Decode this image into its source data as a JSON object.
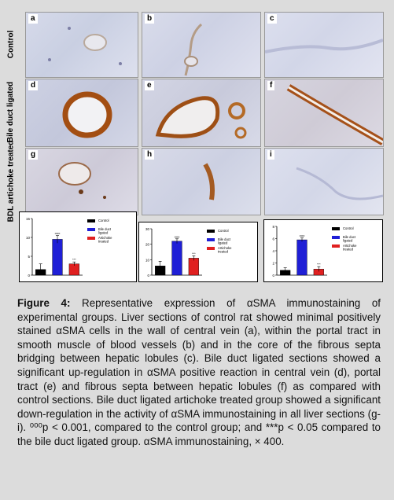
{
  "rows": [
    "Control",
    "Bile duct ligated",
    "BDL artichoke treated"
  ],
  "panels": [
    "a",
    "b",
    "c",
    "d",
    "e",
    "f",
    "g",
    "h",
    "i"
  ],
  "chart_data": [
    {
      "type": "bar",
      "categories": [
        "Control",
        "Bile duct ligated",
        "Artichoke treated"
      ],
      "values": [
        1.5,
        9.5,
        3
      ],
      "errors": [
        1.5,
        1.0,
        0.5
      ],
      "ylim": [
        0,
        15
      ],
      "yticks": [
        "0",
        "5",
        "10",
        "15"
      ],
      "colors": [
        "#000000",
        "#1f1fd6",
        "#e02020"
      ],
      "sig": [
        "",
        "ooo",
        "***"
      ],
      "legend": [
        "Control",
        "Bile duct ligated",
        "Artichoke treated"
      ]
    },
    {
      "type": "bar",
      "categories": [
        "Control",
        "Bile duct ligated",
        "Artichoke treated"
      ],
      "values": [
        6,
        22,
        11
      ],
      "errors": [
        3,
        1.5,
        1.5
      ],
      "ylim": [
        0,
        30
      ],
      "yticks": [
        "0",
        "10",
        "20",
        "30"
      ],
      "colors": [
        "#000000",
        "#1f1fd6",
        "#e02020"
      ],
      "sig": [
        "",
        "ooo",
        "***"
      ],
      "legend": [
        "Control",
        "Bile duct ligated",
        "Artichoke treated"
      ]
    },
    {
      "type": "bar",
      "categories": [
        "Control",
        "Bile duct ligated",
        "Artichoke treated"
      ],
      "values": [
        0.8,
        5.8,
        1
      ],
      "errors": [
        0.4,
        0.3,
        0.4
      ],
      "ylim": [
        0,
        8
      ],
      "yticks": [
        "0",
        "2",
        "4",
        "6",
        "8"
      ],
      "colors": [
        "#000000",
        "#1f1fd6",
        "#e02020"
      ],
      "sig": [
        "",
        "ooo",
        "***"
      ],
      "legend": [
        "Control",
        "Bile duct ligated",
        "Artichoke treated"
      ]
    }
  ],
  "caption": {
    "label": "Figure 4:",
    "text": " Representative expression of αSMA immunostaining of experimental groups. Liver sections of control rat showed minimal positively stained αSMA cells in the wall of central vein (a), within the portal tract in smooth muscle of blood vessels (b) and in the core of the fibrous septa bridging between hepatic lobules (c). Bile duct ligated sections showed a significant up-regulation in αSMA positive reaction in central vein (d), portal tract (e) and fibrous septa between hepatic lobules (f) as compared with control sections. Bile duct ligated artichoke treated group showed a significant down-regulation in the activity of αSMA immunostaining in all liver sections (g-i). ⁰⁰⁰p < 0.001, compared to the control group; and ***p < 0.05 compared to the bile duct ligated group. αSMA immunostaining, × 400."
  }
}
